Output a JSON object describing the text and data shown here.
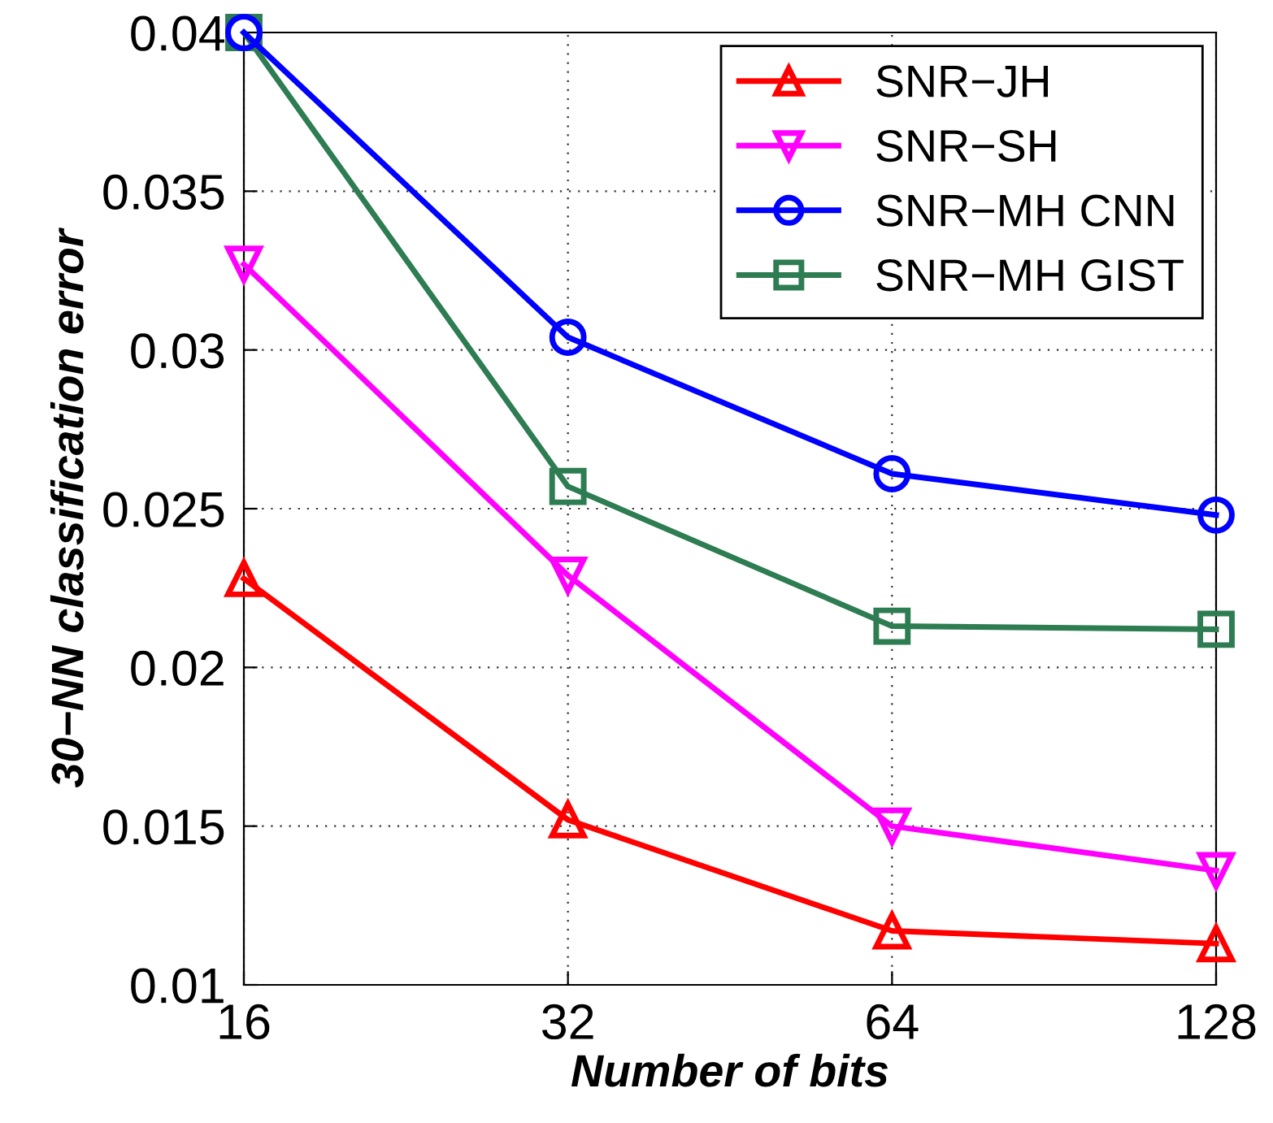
{
  "chart_data": {
    "type": "line",
    "xlabel": "Number of bits",
    "ylabel": "30−NN classification error",
    "x": [
      16,
      32,
      64,
      128
    ],
    "log": "x",
    "xlim": [
      16,
      128
    ],
    "xticks": [
      16,
      32,
      64,
      128
    ],
    "ylim": [
      0.01,
      0.04
    ],
    "yticks": [
      0.01,
      0.015,
      0.02,
      0.025,
      0.03,
      0.035,
      0.04
    ],
    "grid": true,
    "legend": "top right",
    "line_style": "solid",
    "series": [
      {
        "name": "SNR−JH",
        "color": "#ff0000",
        "marker": "triangle",
        "values": [
          0.0228,
          0.0152,
          0.0117,
          0.0113
        ]
      },
      {
        "name": "SNR−SH",
        "color": "#ff00ff",
        "marker": "triangle_down",
        "values": [
          0.0327,
          0.0229,
          0.015,
          0.0136
        ]
      },
      {
        "name": "SNR−MH CNN",
        "color": "#0000ff",
        "marker": "circle",
        "values": [
          0.04,
          0.0304,
          0.0261,
          0.0248
        ]
      },
      {
        "name": "SNR−MH GIST",
        "color": "#2e7d52",
        "marker": "square",
        "values": [
          0.04,
          0.0257,
          0.0213,
          0.0212
        ]
      }
    ]
  }
}
